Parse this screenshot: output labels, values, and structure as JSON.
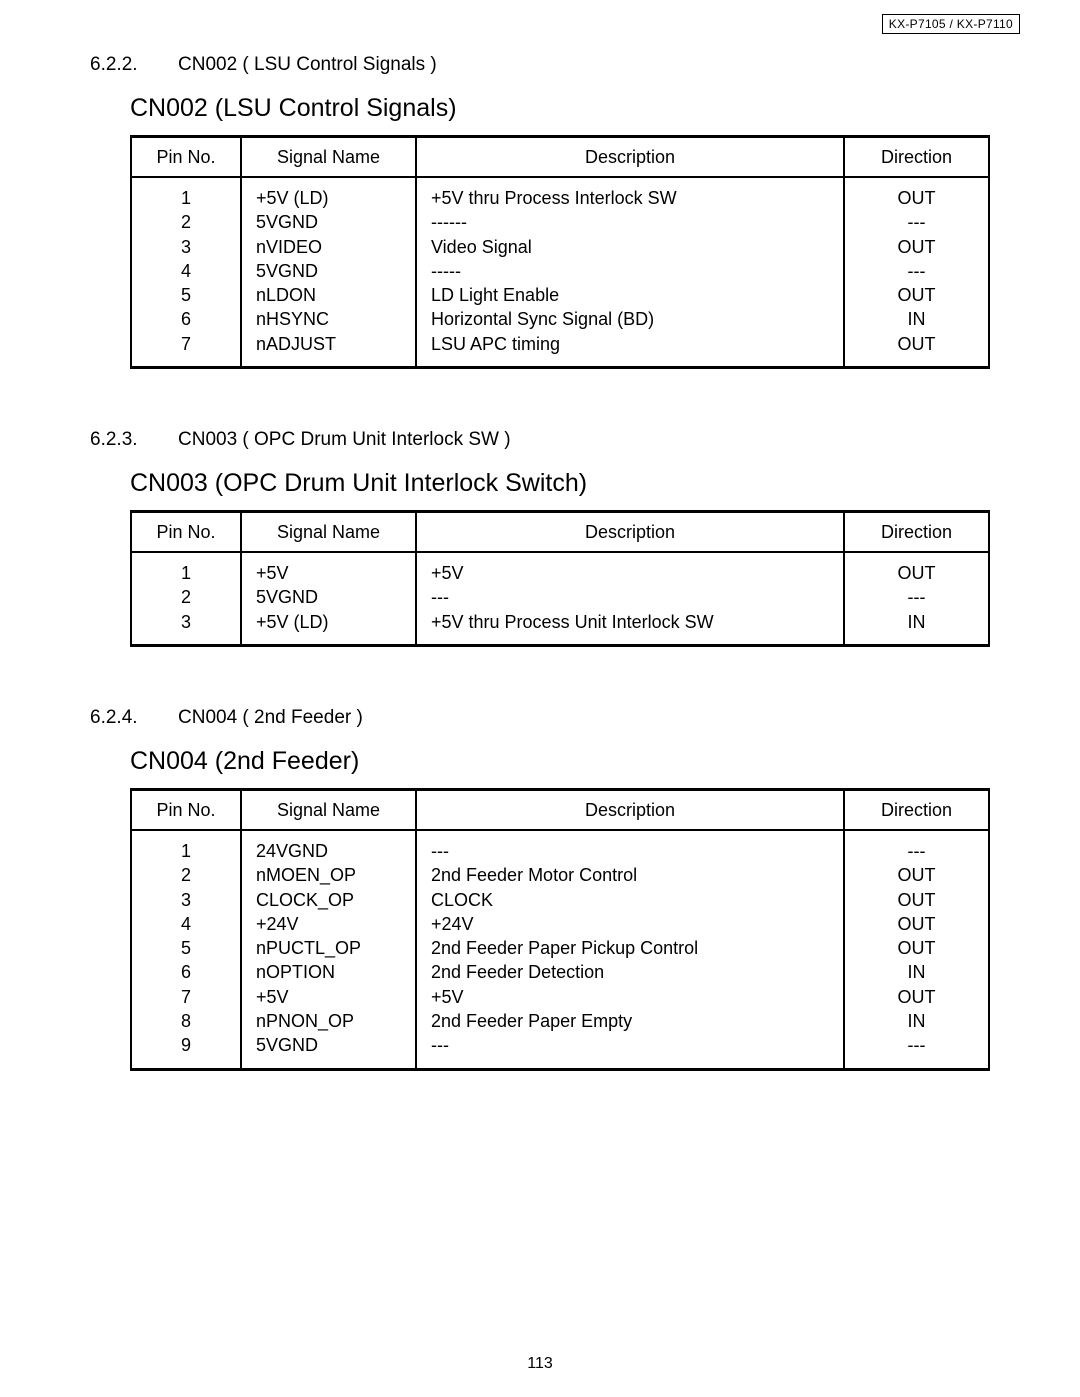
{
  "header": {
    "model_box": "KX-P7105    / KX-P7110"
  },
  "sections": [
    {
      "number": "6.2.2.",
      "heading": "CN002 ( LSU Control Signals )",
      "table_title": "CN002 (LSU Control Signals)",
      "columns": [
        "Pin No.",
        "Signal Name",
        "Description",
        "Direction"
      ],
      "rows": [
        {
          "pin": "1",
          "signal": "+5V (LD)",
          "desc": "+5V thru Process Interlock SW",
          "dir": "OUT"
        },
        {
          "pin": "2",
          "signal": "5VGND",
          "desc": "------",
          "dir": "---"
        },
        {
          "pin": "3",
          "signal": "nVIDEO",
          "desc": "Video Signal",
          "dir": "OUT"
        },
        {
          "pin": "4",
          "signal": "5VGND",
          "desc": "-----",
          "dir": "---"
        },
        {
          "pin": "5",
          "signal": "nLDON",
          "desc": "LD Light Enable",
          "dir": "OUT"
        },
        {
          "pin": "6",
          "signal": "nHSYNC",
          "desc": "Horizontal Sync Signal (BD)",
          "dir": "IN"
        },
        {
          "pin": "7",
          "signal": "nADJUST",
          "desc": "LSU APC timing",
          "dir": "OUT"
        }
      ]
    },
    {
      "number": "6.2.3.",
      "heading": "CN003 ( OPC Drum Unit Interlock SW )",
      "table_title": "CN003 (OPC Drum Unit Interlock Switch)",
      "columns": [
        "Pin No.",
        "Signal Name",
        "Description",
        "Direction"
      ],
      "rows": [
        {
          "pin": "1",
          "signal": "+5V",
          "desc": "+5V",
          "dir": "OUT"
        },
        {
          "pin": "2",
          "signal": "5VGND",
          "desc": "---",
          "dir": "---"
        },
        {
          "pin": "3",
          "signal": "+5V (LD)",
          "desc": "+5V thru Process Unit Interlock SW",
          "dir": "IN"
        }
      ]
    },
    {
      "number": "6.2.4.",
      "heading": "CN004 ( 2nd Feeder )",
      "table_title": "CN004 (2nd Feeder)",
      "columns": [
        "Pin No.",
        "Signal Name",
        "Description",
        "Direction"
      ],
      "rows": [
        {
          "pin": "1",
          "signal": "24VGND",
          "desc": "---",
          "dir": "---"
        },
        {
          "pin": "2",
          "signal": "nMOEN_OP",
          "desc": "2nd Feeder Motor Control",
          "dir": "OUT"
        },
        {
          "pin": "3",
          "signal": "CLOCK_OP",
          "desc": "CLOCK",
          "dir": "OUT"
        },
        {
          "pin": "4",
          "signal": "+24V",
          "desc": "+24V",
          "dir": "OUT"
        },
        {
          "pin": "5",
          "signal": "nPUCTL_OP",
          "desc": "2nd Feeder Paper Pickup Control",
          "dir": "OUT"
        },
        {
          "pin": "6",
          "signal": "nOPTION",
          "desc": "2nd Feeder Detection",
          "dir": "IN"
        },
        {
          "pin": "7",
          "signal": "+5V",
          "desc": "+5V",
          "dir": "OUT"
        },
        {
          "pin": "8",
          "signal": "nPNON_OP",
          "desc": "2nd Feeder Paper Empty",
          "dir": "IN"
        },
        {
          "pin": "9",
          "signal": "5VGND",
          "desc": "---",
          "dir": "---"
        }
      ]
    }
  ],
  "page_number": "113"
}
